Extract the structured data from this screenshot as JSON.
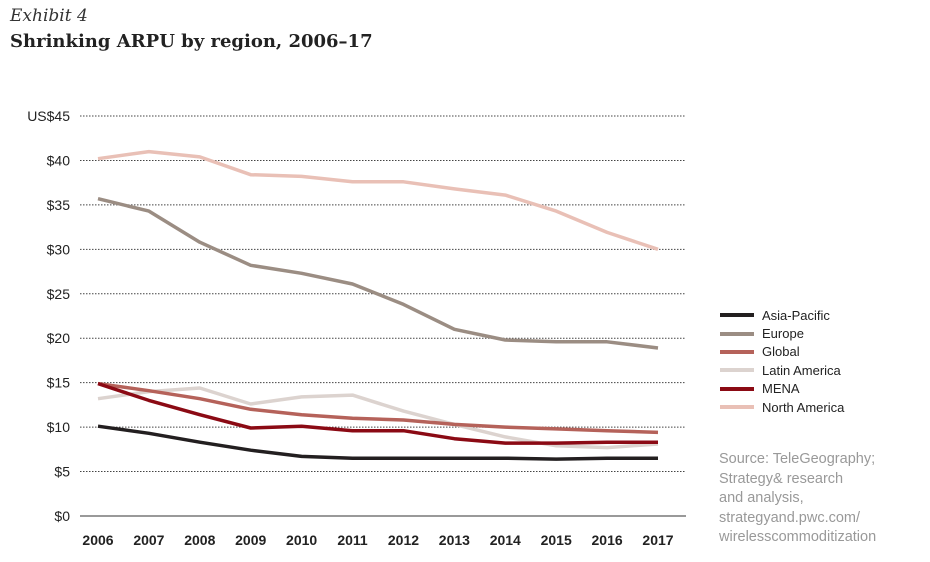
{
  "exhibit_label": "Exhibit 4",
  "title": "Shrinking ARPU by region, 2006–17",
  "source_lines": [
    "Source: TeleGeography;",
    "Strategy& research",
    "and analysis,",
    "strategyand.pwc.com/",
    "wirelesscommoditization"
  ],
  "chart_data": {
    "type": "line",
    "title": "Shrinking ARPU by region, 2006–17",
    "xlabel": "",
    "ylabel": "",
    "x": [
      "2006",
      "2007",
      "2008",
      "2009",
      "2010",
      "2011",
      "2012",
      "2013",
      "2014",
      "2015",
      "2016",
      "2017"
    ],
    "ylim": [
      0,
      45
    ],
    "yticks": [
      0,
      5,
      10,
      15,
      20,
      25,
      30,
      35,
      40,
      45
    ],
    "ytick_labels": [
      "$0",
      "$5",
      "$10",
      "$15",
      "$20",
      "$25",
      "$30",
      "$35",
      "$40",
      "US$45"
    ],
    "grid": true,
    "legend_position": "right",
    "series": [
      {
        "name": "Asia-Pacific",
        "color": "#231f20",
        "values": [
          10.1,
          9.3,
          8.3,
          7.4,
          6.7,
          6.5,
          6.5,
          6.5,
          6.5,
          6.4,
          6.5,
          6.5
        ]
      },
      {
        "name": "Europe",
        "color": "#9b8d83",
        "values": [
          35.7,
          34.3,
          30.8,
          28.2,
          27.3,
          26.1,
          23.8,
          21.0,
          19.8,
          19.6,
          19.6,
          18.9
        ]
      },
      {
        "name": "Global",
        "color": "#b5625a",
        "values": [
          14.9,
          14.1,
          13.2,
          12.0,
          11.4,
          11.0,
          10.8,
          10.3,
          10.0,
          9.8,
          9.6,
          9.4
        ]
      },
      {
        "name": "Latin America",
        "color": "#dcd3cf",
        "values": [
          13.2,
          14.0,
          14.4,
          12.6,
          13.4,
          13.6,
          11.8,
          10.3,
          8.9,
          7.9,
          7.7,
          8.1
        ]
      },
      {
        "name": "MENA",
        "color": "#8b0a14",
        "values": [
          14.9,
          13.0,
          11.4,
          9.9,
          10.1,
          9.6,
          9.6,
          8.7,
          8.2,
          8.2,
          8.3,
          8.3
        ]
      },
      {
        "name": "North America",
        "color": "#e9c0b6",
        "values": [
          40.2,
          41.0,
          40.4,
          38.4,
          38.2,
          37.6,
          37.6,
          36.8,
          36.1,
          34.3,
          31.9,
          30.0
        ]
      }
    ]
  }
}
